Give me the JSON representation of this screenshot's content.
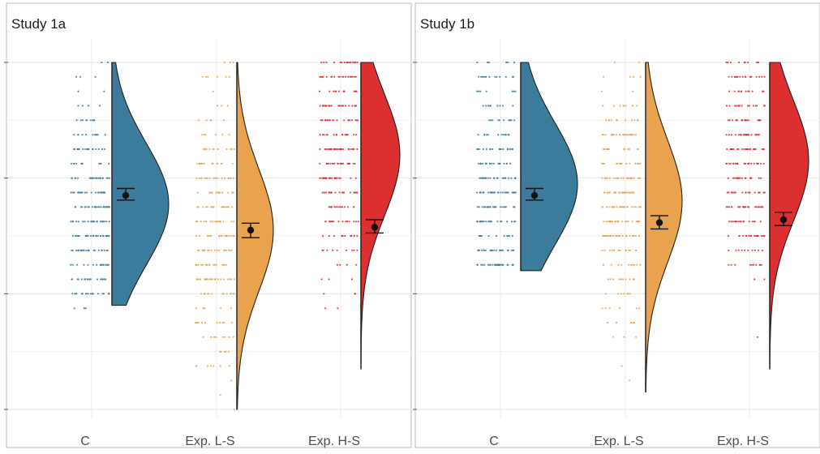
{
  "chart_data": [
    {
      "type": "raincloud",
      "title": "Study 1a",
      "xlabel": "",
      "ylabel": "",
      "categories": [
        "C",
        "Exp. L-S",
        "Exp. H-S"
      ],
      "ylim": [
        0,
        7
      ],
      "y_gridlines": [
        1,
        2,
        3,
        4,
        5,
        6,
        7
      ],
      "grid": true,
      "groups": [
        {
          "category": "C",
          "color": "#3b7b9b",
          "mean": 4.7,
          "ci": [
            4.62,
            4.82
          ],
          "range": [
            2.8,
            7.0
          ],
          "mode": 4.55
        },
        {
          "category": "Exp. L-S",
          "color": "#e9a24e",
          "mean": 4.1,
          "ci": [
            3.97,
            4.22
          ],
          "range": [
            1.0,
            7.0
          ],
          "mode": 4.1
        },
        {
          "category": "Exp. H-S",
          "color": "#dc2f30",
          "mean": 4.15,
          "ci": [
            4.05,
            4.28
          ],
          "range": [
            1.7,
            7.0
          ],
          "mode": 5.4
        }
      ]
    },
    {
      "type": "raincloud",
      "title": "Study 1b",
      "xlabel": "",
      "ylabel": "",
      "categories": [
        "C",
        "Exp. L-S",
        "Exp. H-S"
      ],
      "ylim": [
        0,
        7
      ],
      "y_gridlines": [
        1,
        2,
        3,
        4,
        5,
        6,
        7
      ],
      "grid": true,
      "groups": [
        {
          "category": "C",
          "color": "#3b7b9b",
          "mean": 4.7,
          "ci": [
            4.62,
            4.82
          ],
          "range": [
            3.4,
            7.0
          ],
          "mode": 4.9
        },
        {
          "category": "Exp. L-S",
          "color": "#e9a24e",
          "mean": 4.23,
          "ci": [
            4.12,
            4.35
          ],
          "range": [
            1.3,
            7.0
          ],
          "mode": 4.6
        },
        {
          "category": "Exp. H-S",
          "color": "#dc2f30",
          "mean": 4.28,
          "ci": [
            4.18,
            4.41
          ],
          "range": [
            1.7,
            7.0
          ],
          "mode": 5.3
        }
      ]
    }
  ]
}
